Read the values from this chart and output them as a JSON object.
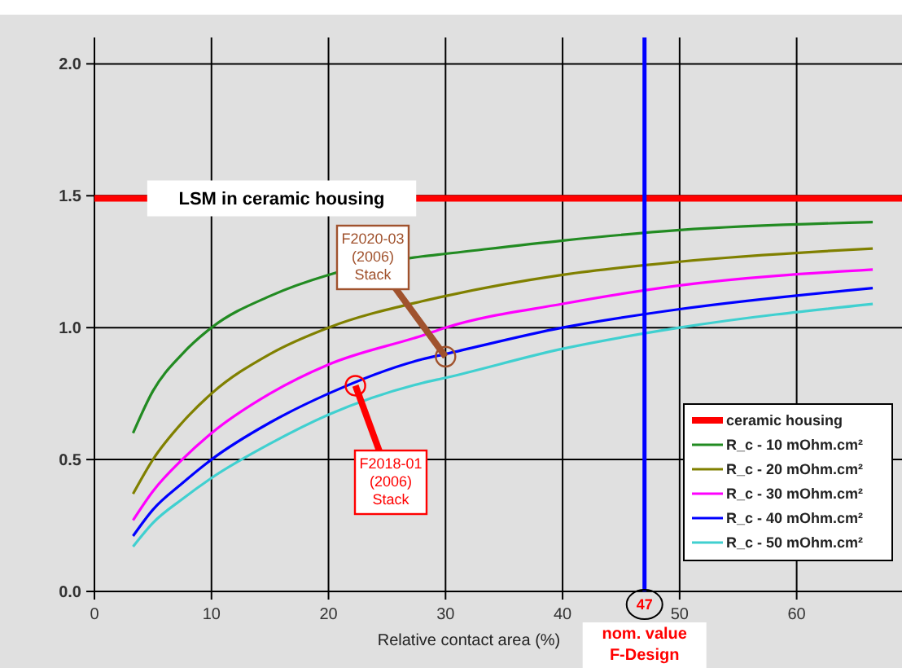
{
  "chart_data": {
    "type": "line",
    "xlabel": "Relative contact area (%)",
    "xlim": [
      0,
      69
    ],
    "ylim": [
      0,
      2.1
    ],
    "xticks": [
      0,
      10,
      20,
      30,
      40,
      50,
      60
    ],
    "yticks": [
      {
        "value": 0,
        "label": "0.0"
      },
      {
        "value": 0.5,
        "label": "0.5"
      },
      {
        "value": 1,
        "label": "1.0"
      },
      {
        "value": 1.5,
        "label": "1.5"
      },
      {
        "value": 2,
        "label": "2.0"
      }
    ],
    "grid": true,
    "legend": "bottom right",
    "marker": "none",
    "line_style": "solid",
    "x": [
      3.3,
      5,
      7.5,
      10,
      15,
      20,
      28,
      30,
      40,
      50,
      66.5
    ],
    "series": [
      {
        "name": "ceramic housing",
        "color": "#ff0000",
        "x": [
          0,
          69
        ],
        "values": [
          1.49,
          1.49
        ]
      },
      {
        "name": "R_c - 10 mOhm.cm²",
        "color": "#228b22",
        "values": [
          0.6,
          0.76,
          0.9,
          1.0,
          1.12,
          1.2,
          1.27,
          1.28,
          1.33,
          1.37,
          1.4
        ]
      },
      {
        "name": "R_c - 20 mOhm.cm²",
        "color": "#808000",
        "values": [
          0.37,
          0.5,
          0.64,
          0.75,
          0.9,
          1.0,
          1.1,
          1.12,
          1.2,
          1.25,
          1.3
        ]
      },
      {
        "name": "R_c - 30 mOhm.cm²",
        "color": "#ff00ff",
        "values": [
          0.27,
          0.38,
          0.5,
          0.6,
          0.75,
          0.86,
          0.97,
          1.0,
          1.09,
          1.16,
          1.22
        ]
      },
      {
        "name": "R_c - 40 mOhm.cm²",
        "color": "#0000ff",
        "values": [
          0.21,
          0.31,
          0.41,
          0.5,
          0.64,
          0.75,
          0.88,
          0.9,
          1.0,
          1.07,
          1.15
        ]
      },
      {
        "name": "R_c - 50 mOhm.cm²",
        "color": "#40d0d0",
        "values": [
          0.17,
          0.26,
          0.35,
          0.43,
          0.56,
          0.67,
          0.79,
          0.81,
          0.92,
          1.0,
          1.09
        ]
      }
    ],
    "ref_lines": [
      {
        "axis": "x",
        "value": 47,
        "label": "47",
        "color": "#0000ff"
      }
    ],
    "annotations": [
      {
        "text": "LSM in ceramic housing",
        "x": 16,
        "y": 1.49
      },
      {
        "text": "F2020-03 (2006) Stack",
        "x": 30,
        "y": 0.89
      },
      {
        "text": "F2018-01 (2006) Stack",
        "x": 22.3,
        "y": 0.78
      },
      "nom. value F-Design"
    ]
  }
}
